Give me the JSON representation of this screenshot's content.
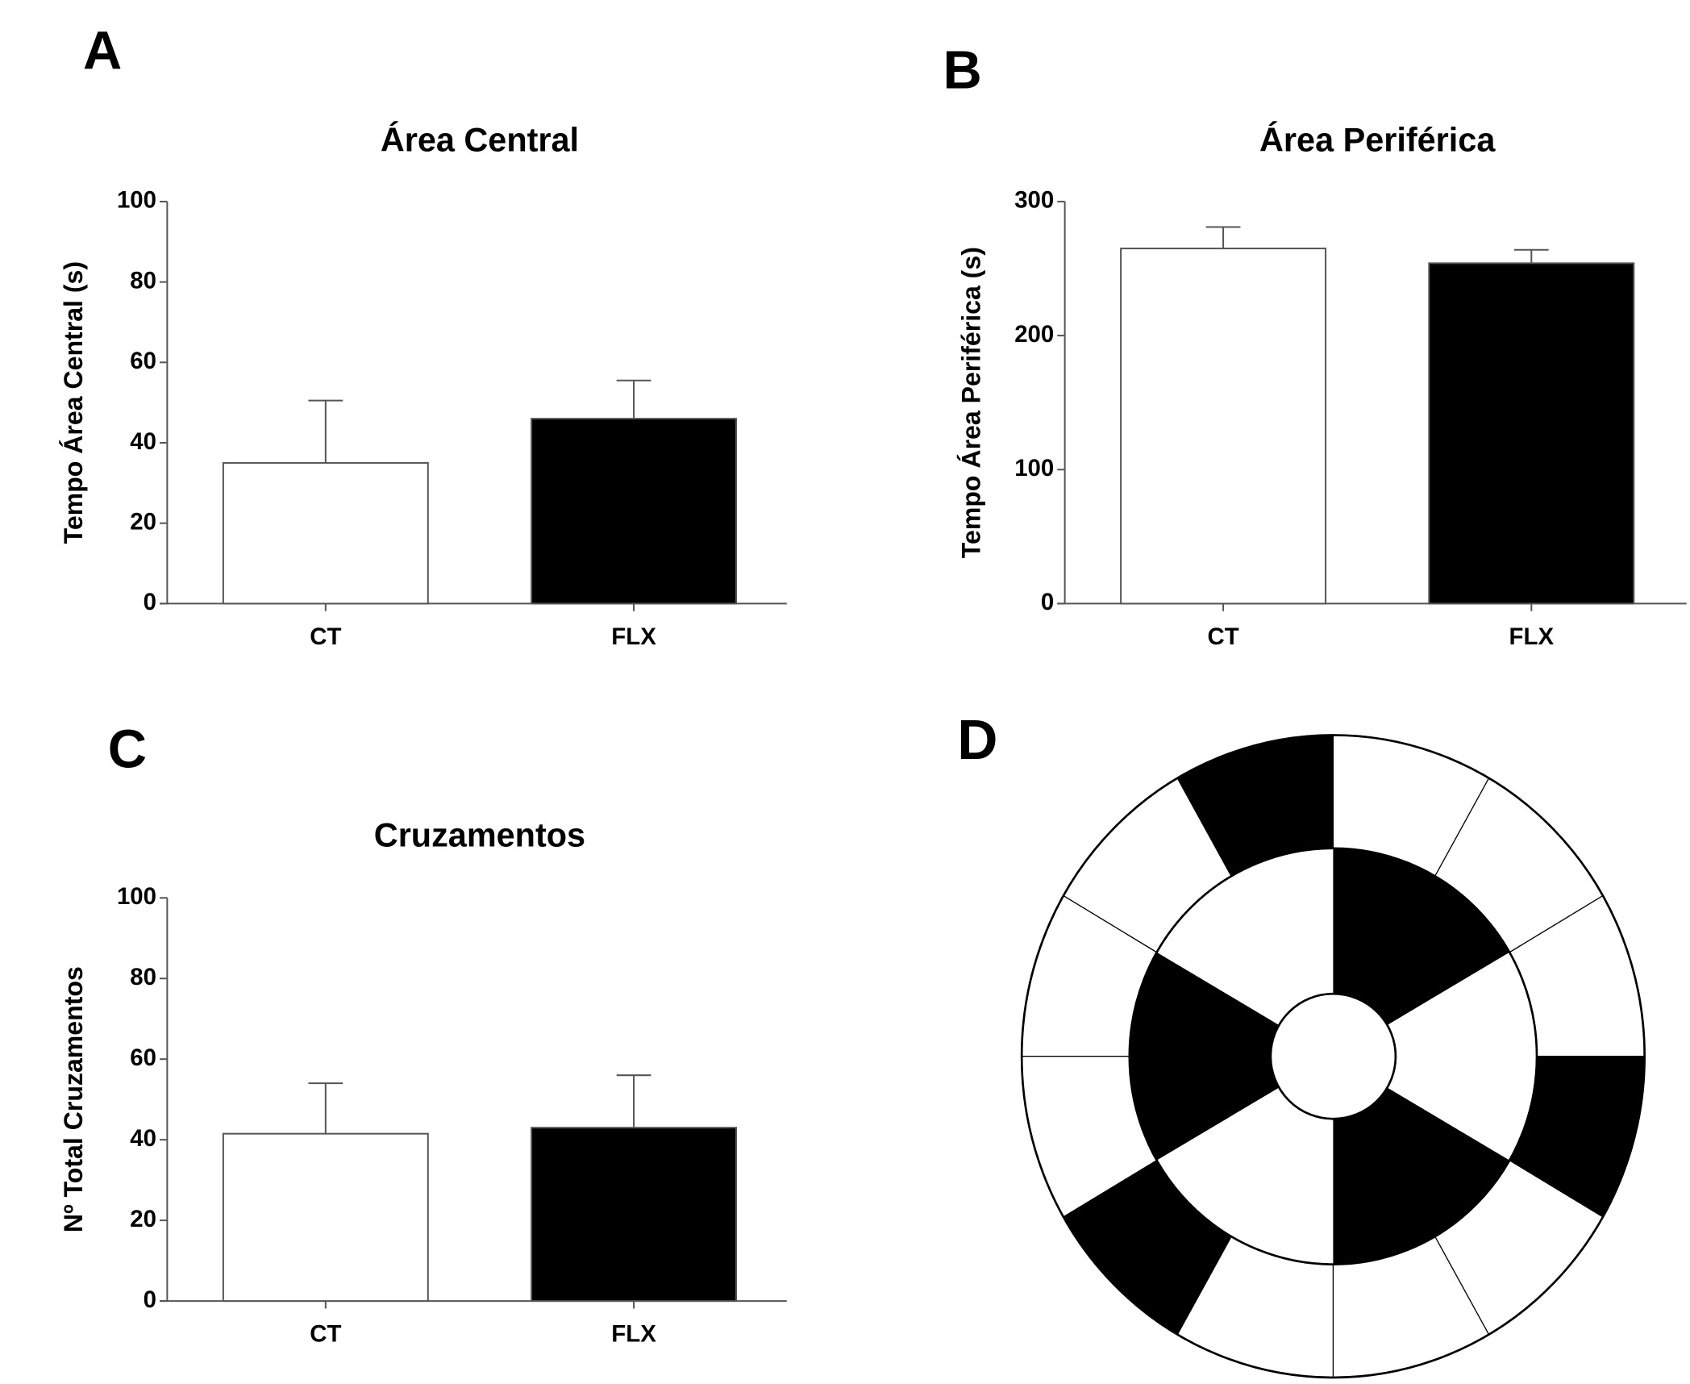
{
  "chart_data": [
    {
      "type": "bar",
      "panel_label": "A",
      "title": "Área Central",
      "ylabel": "Tempo Área Central (s)",
      "categories": [
        "CT",
        "FLX"
      ],
      "values": [
        35,
        46
      ],
      "errors": [
        15.5,
        9.5
      ],
      "colors": [
        "#ffffff",
        "#000000"
      ],
      "ylim": [
        0,
        100
      ],
      "yticks": [
        0,
        20,
        40,
        60,
        80,
        100
      ]
    },
    {
      "type": "bar",
      "panel_label": "B",
      "title": "Área Periférica",
      "ylabel": "Tempo Área Periférica (s)",
      "categories": [
        "CT",
        "FLX"
      ],
      "values": [
        265,
        254
      ],
      "errors": [
        16,
        10
      ],
      "colors": [
        "#ffffff",
        "#000000"
      ],
      "ylim": [
        0,
        300
      ],
      "yticks": [
        0,
        100,
        200,
        300
      ]
    },
    {
      "type": "bar",
      "panel_label": "C",
      "title": "Cruzamentos",
      "ylabel": "Nº Total Cruzamentos",
      "categories": [
        "CT",
        "FLX"
      ],
      "values": [
        41.5,
        43
      ],
      "errors": [
        12.5,
        13
      ],
      "colors": [
        "#ffffff",
        "#000000"
      ],
      "ylim": [
        0,
        100
      ],
      "yticks": [
        0,
        20,
        40,
        60,
        80,
        100
      ]
    }
  ],
  "diagram": {
    "panel_label": "D"
  }
}
